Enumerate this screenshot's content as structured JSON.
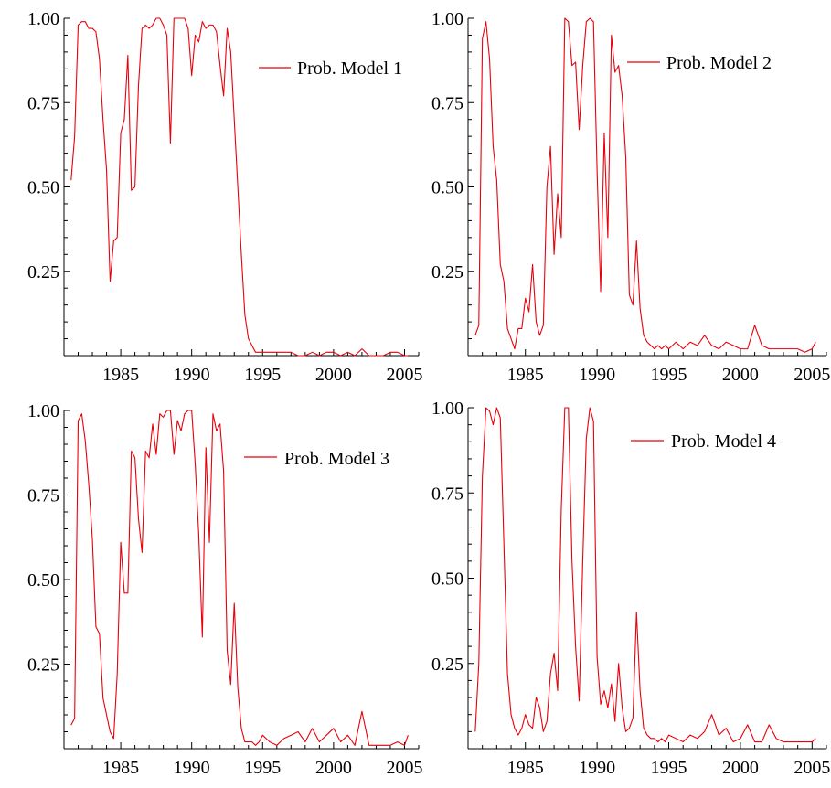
{
  "chart_data": [
    {
      "type": "line",
      "xlim": [
        1981,
        2006
      ],
      "ylim": [
        0,
        1
      ],
      "xticks": [
        "1985",
        "1990",
        "1995",
        "2000",
        "2005"
      ],
      "yticks": [
        "0.25",
        "0.50",
        "0.75",
        "1.00"
      ],
      "grid": false,
      "legend_position": "top-right",
      "series": [
        {
          "name": "Prob. Model 1",
          "color": "#e8000b",
          "x": [
            1981.5,
            1981.75,
            1982.0,
            1982.25,
            1982.5,
            1982.75,
            1983.0,
            1983.25,
            1983.5,
            1983.75,
            1984.0,
            1984.25,
            1984.5,
            1984.75,
            1985.0,
            1985.25,
            1985.5,
            1985.75,
            1986.0,
            1986.25,
            1986.5,
            1986.75,
            1987.0,
            1987.25,
            1987.5,
            1987.75,
            1988.0,
            1988.25,
            1988.5,
            1988.75,
            1989.0,
            1989.25,
            1989.5,
            1989.75,
            1990.0,
            1990.25,
            1990.5,
            1990.75,
            1991.0,
            1991.25,
            1991.5,
            1991.75,
            1992.0,
            1992.25,
            1992.5,
            1992.75,
            1993.0,
            1993.25,
            1993.5,
            1993.75,
            1994.0,
            1994.25,
            1994.5,
            1994.75,
            1995.0,
            1995.25,
            1995.5,
            1995.75,
            1996.0,
            1996.5,
            1997.0,
            1997.5,
            1998.0,
            1998.5,
            1999.0,
            1999.5,
            2000.0,
            2000.5,
            2001.0,
            2001.5,
            2002.0,
            2002.5,
            2003.0,
            2003.5,
            2004.0,
            2004.5,
            2005.0,
            2005.25
          ],
          "y": [
            0.52,
            0.65,
            0.98,
            0.99,
            0.99,
            0.97,
            0.97,
            0.96,
            0.88,
            0.7,
            0.55,
            0.22,
            0.34,
            0.35,
            0.66,
            0.7,
            0.89,
            0.49,
            0.5,
            0.8,
            0.97,
            0.98,
            0.97,
            0.98,
            1.0,
            1.0,
            0.98,
            0.95,
            0.63,
            1.0,
            1.0,
            1.0,
            1.0,
            0.97,
            0.83,
            0.95,
            0.93,
            0.99,
            0.97,
            0.98,
            0.98,
            0.96,
            0.86,
            0.77,
            0.97,
            0.9,
            0.7,
            0.5,
            0.3,
            0.12,
            0.05,
            0.03,
            0.01,
            0.01,
            0.01,
            0.01,
            0.01,
            0.01,
            0.01,
            0.01,
            0.01,
            0.0,
            0.0,
            0.01,
            0.0,
            0.01,
            0.01,
            0.0,
            0.01,
            0.0,
            0.02,
            0.0,
            0.0,
            0.0,
            0.01,
            0.01,
            0.0,
            0.0
          ]
        }
      ]
    },
    {
      "type": "line",
      "xlim": [
        1981,
        2006
      ],
      "ylim": [
        0,
        1
      ],
      "xticks": [
        "1985",
        "1990",
        "1995",
        "2000",
        "2005"
      ],
      "yticks": [
        "0.25",
        "0.50",
        "0.75",
        "1.00"
      ],
      "grid": false,
      "legend_position": "top-right",
      "series": [
        {
          "name": "Prob. Model 2",
          "color": "#e8000b",
          "x": [
            1981.5,
            1981.75,
            1982.0,
            1982.25,
            1982.5,
            1982.75,
            1983.0,
            1983.25,
            1983.5,
            1983.75,
            1984.0,
            1984.25,
            1984.5,
            1984.75,
            1985.0,
            1985.25,
            1985.5,
            1985.75,
            1986.0,
            1986.25,
            1986.5,
            1986.75,
            1987.0,
            1987.25,
            1987.5,
            1987.75,
            1988.0,
            1988.25,
            1988.5,
            1988.75,
            1989.0,
            1989.25,
            1989.5,
            1989.75,
            1990.0,
            1990.25,
            1990.5,
            1990.75,
            1991.0,
            1991.25,
            1991.5,
            1991.75,
            1992.0,
            1992.25,
            1992.5,
            1992.75,
            1993.0,
            1993.25,
            1993.5,
            1993.75,
            1994.0,
            1994.25,
            1994.5,
            1994.75,
            1995.0,
            1995.5,
            1996.0,
            1996.5,
            1997.0,
            1997.5,
            1998.0,
            1998.5,
            1999.0,
            1999.5,
            2000.0,
            2000.5,
            2001.0,
            2001.5,
            2002.0,
            2002.5,
            2003.0,
            2003.5,
            2004.0,
            2004.5,
            2005.0,
            2005.25
          ],
          "y": [
            0.06,
            0.09,
            0.94,
            0.99,
            0.88,
            0.62,
            0.52,
            0.27,
            0.22,
            0.08,
            0.05,
            0.02,
            0.08,
            0.08,
            0.17,
            0.13,
            0.27,
            0.1,
            0.06,
            0.09,
            0.5,
            0.62,
            0.3,
            0.48,
            0.35,
            1.0,
            0.99,
            0.86,
            0.87,
            0.67,
            0.86,
            0.99,
            1.0,
            0.99,
            0.55,
            0.19,
            0.66,
            0.35,
            0.95,
            0.84,
            0.86,
            0.77,
            0.59,
            0.18,
            0.15,
            0.34,
            0.14,
            0.06,
            0.04,
            0.03,
            0.02,
            0.03,
            0.02,
            0.03,
            0.02,
            0.04,
            0.02,
            0.04,
            0.03,
            0.06,
            0.03,
            0.02,
            0.04,
            0.03,
            0.02,
            0.02,
            0.09,
            0.03,
            0.02,
            0.02,
            0.02,
            0.02,
            0.02,
            0.01,
            0.02,
            0.04
          ]
        }
      ]
    },
    {
      "type": "line",
      "xlim": [
        1981,
        2006
      ],
      "ylim": [
        0,
        1
      ],
      "xticks": [
        "1985",
        "1990",
        "1995",
        "2000",
        "2005"
      ],
      "yticks": [
        "0.25",
        "0.50",
        "0.75",
        "1.00"
      ],
      "grid": false,
      "legend_position": "top-right",
      "series": [
        {
          "name": "Prob. Model 3",
          "color": "#e8000b",
          "x": [
            1981.5,
            1981.75,
            1982.0,
            1982.25,
            1982.5,
            1982.75,
            1983.0,
            1983.25,
            1983.5,
            1983.75,
            1984.0,
            1984.25,
            1984.5,
            1984.75,
            1985.0,
            1985.25,
            1985.5,
            1985.75,
            1986.0,
            1986.25,
            1986.5,
            1986.75,
            1987.0,
            1987.25,
            1987.5,
            1987.75,
            1988.0,
            1988.25,
            1988.5,
            1988.75,
            1989.0,
            1989.25,
            1989.5,
            1989.75,
            1990.0,
            1990.25,
            1990.5,
            1990.75,
            1991.0,
            1991.25,
            1991.5,
            1991.75,
            1992.0,
            1992.25,
            1992.5,
            1992.75,
            1993.0,
            1993.25,
            1993.5,
            1993.75,
            1994.0,
            1994.25,
            1994.5,
            1994.75,
            1995.0,
            1995.5,
            1996.0,
            1996.5,
            1997.0,
            1997.5,
            1998.0,
            1998.5,
            1999.0,
            1999.5,
            2000.0,
            2000.5,
            2001.0,
            2001.5,
            2002.0,
            2002.5,
            2003.0,
            2003.5,
            2004.0,
            2004.5,
            2005.0,
            2005.25
          ],
          "y": [
            0.07,
            0.09,
            0.97,
            0.99,
            0.91,
            0.78,
            0.62,
            0.36,
            0.34,
            0.15,
            0.1,
            0.05,
            0.03,
            0.22,
            0.61,
            0.46,
            0.46,
            0.88,
            0.86,
            0.68,
            0.58,
            0.88,
            0.86,
            0.96,
            0.87,
            0.99,
            0.98,
            1.0,
            1.0,
            0.87,
            0.97,
            0.94,
            0.99,
            1.0,
            1.0,
            0.84,
            0.63,
            0.33,
            0.89,
            0.61,
            0.99,
            0.94,
            0.96,
            0.82,
            0.29,
            0.19,
            0.43,
            0.18,
            0.06,
            0.02,
            0.02,
            0.02,
            0.01,
            0.02,
            0.04,
            0.02,
            0.01,
            0.03,
            0.04,
            0.05,
            0.02,
            0.06,
            0.02,
            0.04,
            0.06,
            0.02,
            0.04,
            0.01,
            0.11,
            0.01,
            0.01,
            0.01,
            0.01,
            0.02,
            0.01,
            0.04
          ]
        }
      ]
    },
    {
      "type": "line",
      "xlim": [
        1981,
        2006
      ],
      "ylim": [
        0,
        1
      ],
      "xticks": [
        "1985",
        "1990",
        "1995",
        "2000",
        "2005"
      ],
      "yticks": [
        "0.25",
        "0.50",
        "0.75",
        "1.00"
      ],
      "grid": false,
      "legend_position": "top-right",
      "series": [
        {
          "name": "Prob. Model 4",
          "color": "#e8000b",
          "x": [
            1981.5,
            1981.75,
            1982.0,
            1982.25,
            1982.5,
            1982.75,
            1983.0,
            1983.25,
            1983.5,
            1983.75,
            1984.0,
            1984.25,
            1984.5,
            1984.75,
            1985.0,
            1985.25,
            1985.5,
            1985.75,
            1986.0,
            1986.25,
            1986.5,
            1986.75,
            1987.0,
            1987.25,
            1987.5,
            1987.75,
            1988.0,
            1988.25,
            1988.5,
            1988.75,
            1989.0,
            1989.25,
            1989.5,
            1989.75,
            1990.0,
            1990.25,
            1990.5,
            1990.75,
            1991.0,
            1991.25,
            1991.5,
            1991.75,
            1992.0,
            1992.25,
            1992.5,
            1992.75,
            1993.0,
            1993.25,
            1993.5,
            1993.75,
            1994.0,
            1994.25,
            1994.5,
            1994.75,
            1995.0,
            1995.5,
            1996.0,
            1996.5,
            1997.0,
            1997.5,
            1998.0,
            1998.5,
            1999.0,
            1999.5,
            2000.0,
            2000.5,
            2001.0,
            2001.5,
            2002.0,
            2002.5,
            2003.0,
            2003.5,
            2004.0,
            2004.5,
            2005.0,
            2005.25
          ],
          "y": [
            0.05,
            0.25,
            0.8,
            1.0,
            0.99,
            0.95,
            1.0,
            0.97,
            0.6,
            0.22,
            0.1,
            0.06,
            0.04,
            0.06,
            0.1,
            0.07,
            0.06,
            0.15,
            0.12,
            0.05,
            0.08,
            0.22,
            0.28,
            0.17,
            0.7,
            1.0,
            1.0,
            0.55,
            0.3,
            0.14,
            0.55,
            0.91,
            1.0,
            0.96,
            0.27,
            0.13,
            0.17,
            0.12,
            0.19,
            0.08,
            0.25,
            0.12,
            0.05,
            0.06,
            0.09,
            0.4,
            0.17,
            0.06,
            0.04,
            0.03,
            0.03,
            0.02,
            0.03,
            0.02,
            0.04,
            0.03,
            0.02,
            0.04,
            0.03,
            0.05,
            0.1,
            0.04,
            0.06,
            0.02,
            0.03,
            0.07,
            0.02,
            0.02,
            0.07,
            0.03,
            0.02,
            0.02,
            0.02,
            0.02,
            0.02,
            0.03
          ]
        }
      ]
    }
  ]
}
